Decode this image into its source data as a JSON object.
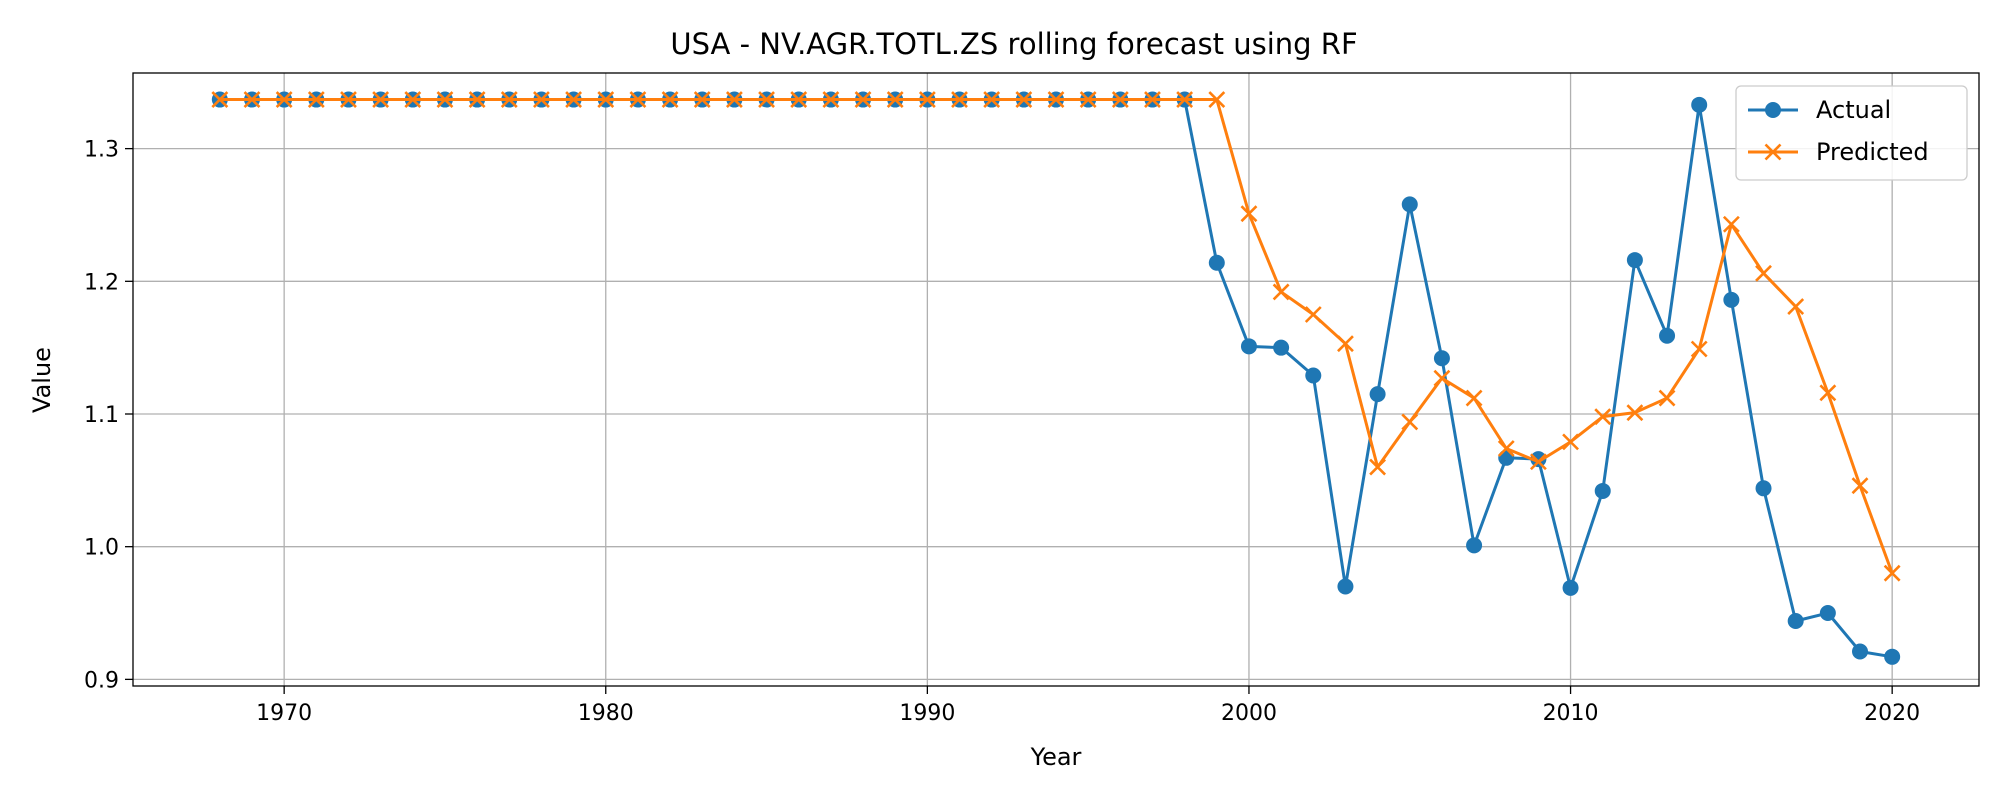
{
  "chart_data": {
    "type": "line",
    "title": "USA - NV.AGR.TOTL.ZS rolling forecast using RF",
    "xlabel": "Year",
    "ylabel": "Value",
    "xlim": [
      1965.3,
      2022.7
    ],
    "ylim": [
      0.895,
      1.357
    ],
    "xticks": [
      1970,
      1980,
      1990,
      2000,
      2010,
      2020
    ],
    "yticks": [
      0.9,
      1.0,
      1.1,
      1.2,
      1.3
    ],
    "ytick_labels": [
      "0.9",
      "1.0",
      "1.1",
      "1.2",
      "1.3"
    ],
    "grid": true,
    "legend_position": "top-right",
    "x": [
      1968,
      1969,
      1970,
      1971,
      1972,
      1973,
      1974,
      1975,
      1976,
      1977,
      1978,
      1979,
      1980,
      1981,
      1982,
      1983,
      1984,
      1985,
      1986,
      1987,
      1988,
      1989,
      1990,
      1991,
      1992,
      1993,
      1994,
      1995,
      1996,
      1997,
      1998,
      1999,
      2000,
      2001,
      2002,
      2003,
      2004,
      2005,
      2006,
      2007,
      2008,
      2009,
      2010,
      2011,
      2012,
      2013,
      2014,
      2015,
      2016,
      2017,
      2018,
      2019,
      2020
    ],
    "series": [
      {
        "name": "Actual",
        "color": "#1f77b4",
        "marker": "circle",
        "values": [
          1.337,
          1.337,
          1.337,
          1.337,
          1.337,
          1.337,
          1.337,
          1.337,
          1.337,
          1.337,
          1.337,
          1.337,
          1.337,
          1.337,
          1.337,
          1.337,
          1.337,
          1.337,
          1.337,
          1.337,
          1.337,
          1.337,
          1.337,
          1.337,
          1.337,
          1.337,
          1.337,
          1.337,
          1.337,
          1.337,
          1.337,
          1.214,
          1.151,
          1.15,
          1.129,
          0.97,
          1.115,
          1.258,
          1.142,
          1.001,
          1.067,
          1.066,
          0.969,
          1.042,
          1.216,
          1.159,
          1.333,
          1.186,
          1.044,
          0.944,
          0.95,
          0.921,
          0.917
        ]
      },
      {
        "name": "Predicted",
        "color": "#ff7f0e",
        "marker": "x",
        "values": [
          1.337,
          1.337,
          1.337,
          1.337,
          1.337,
          1.337,
          1.337,
          1.337,
          1.337,
          1.337,
          1.337,
          1.337,
          1.337,
          1.337,
          1.337,
          1.337,
          1.337,
          1.337,
          1.337,
          1.337,
          1.337,
          1.337,
          1.337,
          1.337,
          1.337,
          1.337,
          1.337,
          1.337,
          1.337,
          1.337,
          1.337,
          1.337,
          1.251,
          1.192,
          1.175,
          1.153,
          1.06,
          1.094,
          1.127,
          1.112,
          1.074,
          1.064,
          1.079,
          1.098,
          1.101,
          1.112,
          1.149,
          1.243,
          1.206,
          1.181,
          1.116,
          1.046,
          0.98
        ]
      }
    ]
  }
}
